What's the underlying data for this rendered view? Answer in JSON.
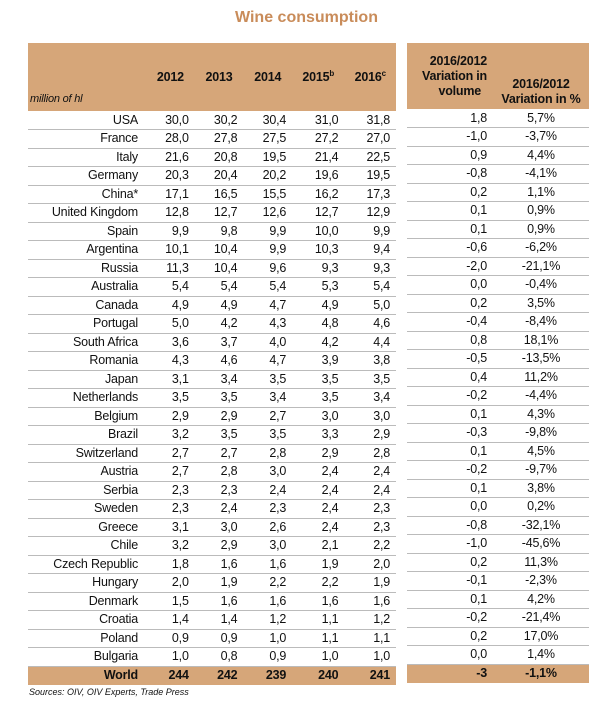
{
  "title": "Wine consumption",
  "unit": "million of hl",
  "years": [
    {
      "year": "2012",
      "sup": ""
    },
    {
      "year": "2013",
      "sup": ""
    },
    {
      "year": "2014",
      "sup": ""
    },
    {
      "year": "2015",
      "sup": "b"
    },
    {
      "year": "2016",
      "sup": "c"
    }
  ],
  "variation_headers": {
    "volume": [
      "2016/2012",
      "Variation in",
      "volume"
    ],
    "percent": [
      "2016/2012",
      "Variation in %"
    ]
  },
  "rows": [
    [
      "USA",
      "30,0",
      "30,2",
      "30,4",
      "31,0",
      "31,8",
      "1,8",
      "5,7%"
    ],
    [
      "France",
      "28,0",
      "27,8",
      "27,5",
      "27,2",
      "27,0",
      "-1,0",
      "-3,7%"
    ],
    [
      "Italy",
      "21,6",
      "20,8",
      "19,5",
      "21,4",
      "22,5",
      "0,9",
      "4,4%"
    ],
    [
      "Germany",
      "20,3",
      "20,4",
      "20,2",
      "19,6",
      "19,5",
      "-0,8",
      "-4,1%"
    ],
    [
      "China*",
      "17,1",
      "16,5",
      "15,5",
      "16,2",
      "17,3",
      "0,2",
      "1,1%"
    ],
    [
      "United Kingdom",
      "12,8",
      "12,7",
      "12,6",
      "12,7",
      "12,9",
      "0,1",
      "0,9%"
    ],
    [
      "Spain",
      "9,9",
      "9,8",
      "9,9",
      "10,0",
      "9,9",
      "0,1",
      "0,9%"
    ],
    [
      "Argentina",
      "10,1",
      "10,4",
      "9,9",
      "10,3",
      "9,4",
      "-0,6",
      "-6,2%"
    ],
    [
      "Russia",
      "11,3",
      "10,4",
      "9,6",
      "9,3",
      "9,3",
      "-2,0",
      "-21,1%"
    ],
    [
      "Australia",
      "5,4",
      "5,4",
      "5,4",
      "5,3",
      "5,4",
      "0,0",
      "-0,4%"
    ],
    [
      "Canada",
      "4,9",
      "4,9",
      "4,7",
      "4,9",
      "5,0",
      "0,2",
      "3,5%"
    ],
    [
      "Portugal",
      "5,0",
      "4,2",
      "4,3",
      "4,8",
      "4,6",
      "-0,4",
      "-8,4%"
    ],
    [
      "South Africa",
      "3,6",
      "3,7",
      "4,0",
      "4,2",
      "4,4",
      "0,8",
      "18,1%"
    ],
    [
      "Romania",
      "4,3",
      "4,6",
      "4,7",
      "3,9",
      "3,8",
      "-0,5",
      "-13,5%"
    ],
    [
      "Japan",
      "3,1",
      "3,4",
      "3,5",
      "3,5",
      "3,5",
      "0,4",
      "11,2%"
    ],
    [
      "Netherlands",
      "3,5",
      "3,5",
      "3,4",
      "3,5",
      "3,4",
      "-0,2",
      "-4,4%"
    ],
    [
      "Belgium",
      "2,9",
      "2,9",
      "2,7",
      "3,0",
      "3,0",
      "0,1",
      "4,3%"
    ],
    [
      "Brazil",
      "3,2",
      "3,5",
      "3,5",
      "3,3",
      "2,9",
      "-0,3",
      "-9,8%"
    ],
    [
      "Switzerland",
      "2,7",
      "2,7",
      "2,8",
      "2,9",
      "2,8",
      "0,1",
      "4,5%"
    ],
    [
      "Austria",
      "2,7",
      "2,8",
      "3,0",
      "2,4",
      "2,4",
      "-0,2",
      "-9,7%"
    ],
    [
      "Serbia",
      "2,3",
      "2,3",
      "2,4",
      "2,4",
      "2,4",
      "0,1",
      "3,8%"
    ],
    [
      "Sweden",
      "2,3",
      "2,4",
      "2,3",
      "2,4",
      "2,3",
      "0,0",
      "0,2%"
    ],
    [
      "Greece",
      "3,1",
      "3,0",
      "2,6",
      "2,4",
      "2,3",
      "-0,8",
      "-32,1%"
    ],
    [
      "Chile",
      "3,2",
      "2,9",
      "3,0",
      "2,1",
      "2,2",
      "-1,0",
      "-45,6%"
    ],
    [
      "Czech Republic",
      "1,8",
      "1,6",
      "1,6",
      "1,9",
      "2,0",
      "0,2",
      "11,3%"
    ],
    [
      "Hungary",
      "2,0",
      "1,9",
      "2,2",
      "2,2",
      "1,9",
      "-0,1",
      "-2,3%"
    ],
    [
      "Denmark",
      "1,5",
      "1,6",
      "1,6",
      "1,6",
      "1,6",
      "0,1",
      "4,2%"
    ],
    [
      "Croatia",
      "1,4",
      "1,4",
      "1,2",
      "1,1",
      "1,2",
      "-0,2",
      "-21,4%"
    ],
    [
      "Poland",
      "0,9",
      "0,9",
      "1,0",
      "1,1",
      "1,1",
      "0,2",
      "17,0%"
    ],
    [
      "Bulgaria",
      "1,0",
      "0,8",
      "0,9",
      "1,0",
      "1,0",
      "0,0",
      "1,4%"
    ]
  ],
  "world": [
    "World",
    "244",
    "242",
    "239",
    "240",
    "241",
    "-3",
    "-1,1%"
  ],
  "source": "Sources: OIV, OIV Experts, Trade Press",
  "colors": {
    "header": "#d6a679",
    "title": "#c98c5a"
  }
}
